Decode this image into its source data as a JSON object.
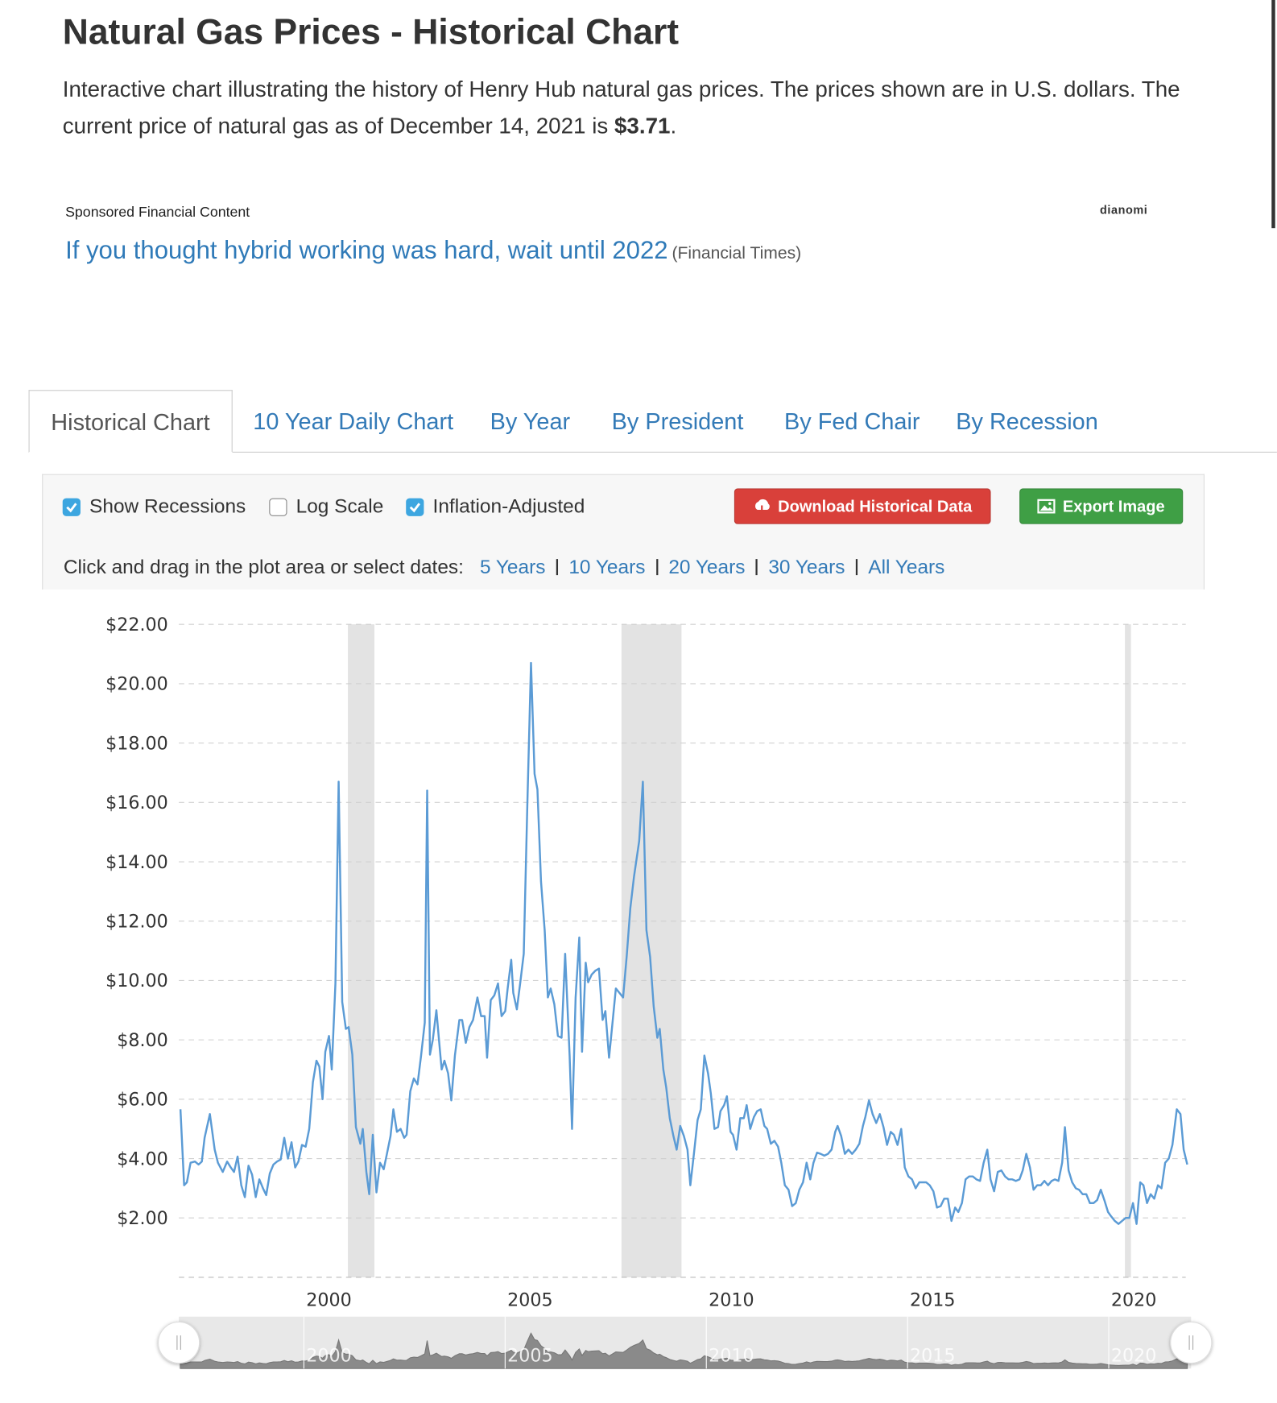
{
  "header": {
    "title": "Natural Gas Prices - Historical Chart",
    "description": "Interactive chart illustrating the history of Henry Hub natural gas prices. The prices shown are in U.S. dollars. The current price of natural gas as of December 14, 2021 is ",
    "price": "$3.71",
    "description_end": "."
  },
  "sponsored": {
    "label": "Sponsored Financial Content",
    "brand": "Dianomi",
    "headline": "If you thought hybrid working was hard, wait until 2022",
    "source": "(Financial Times)"
  },
  "tabs": [
    "Historical Chart",
    "10 Year Daily Chart",
    "By Year",
    "By President",
    "By Fed Chair",
    "By Recession"
  ],
  "controls": {
    "options": [
      {
        "label": "Show Recessions",
        "checked": true
      },
      {
        "label": "Log Scale",
        "checked": false
      },
      {
        "label": "Inflation-Adjusted",
        "checked": true
      }
    ],
    "buttons": [
      {
        "label": "Download Historical Data",
        "color": "#d9403a"
      },
      {
        "label": "Export Image",
        "color": "#3f9f45"
      }
    ],
    "range_prompt": "Click and drag in the plot area or select dates:",
    "ranges": [
      "5 Years",
      "10 Years",
      "20 Years",
      "30 Years",
      "All Years"
    ]
  },
  "chart_data": {
    "type": "line",
    "color": "#5b9bd5",
    "grid": true,
    "log_scale": false,
    "recessions": [
      [
        2000.47,
        2001.13
      ],
      [
        2007.27,
        2008.76
      ],
      [
        2019.78,
        2019.93
      ]
    ],
    "recession_color": "#e3e3e3",
    "xlim": [
      1996.27,
      2021.38
    ],
    "xticks": [
      2000,
      2005,
      2010,
      2015,
      2020
    ],
    "ylim": [
      0,
      22
    ],
    "yticks": [
      {
        "value": 2,
        "label": "$2.00"
      },
      {
        "value": 4,
        "label": "$4.00"
      },
      {
        "value": 6,
        "label": "$6.00"
      },
      {
        "value": 8,
        "label": "$8.00"
      },
      {
        "value": 10,
        "label": "$10.00"
      },
      {
        "value": 12,
        "label": "$12.00"
      },
      {
        "value": 14,
        "label": "$14.00"
      },
      {
        "value": 16,
        "label": "$16.00"
      },
      {
        "value": 18,
        "label": "$18.00"
      },
      {
        "value": 20,
        "label": "$20.00"
      },
      {
        "value": 22,
        "label": "$22.00"
      }
    ],
    "x": [
      1996.31,
      1996.4,
      1996.47,
      1996.56,
      1996.67,
      1996.76,
      1996.84,
      1996.91,
      1997.04,
      1997.16,
      1997.24,
      1997.36,
      1997.47,
      1997.56,
      1997.64,
      1997.73,
      1997.82,
      1997.91,
      1998.0,
      1998.09,
      1998.18,
      1998.27,
      1998.36,
      1998.44,
      1998.53,
      1998.62,
      1998.71,
      1998.8,
      1998.89,
      1998.98,
      1999.07,
      1999.16,
      1999.24,
      1999.33,
      1999.42,
      1999.51,
      1999.6,
      1999.69,
      1999.76,
      1999.84,
      1999.91,
      2000.0,
      2000.07,
      2000.16,
      2000.24,
      2000.33,
      2000.42,
      2000.49,
      2000.58,
      2000.67,
      2000.78,
      2000.84,
      2000.93,
      2001.0,
      2001.09,
      2001.18,
      2001.27,
      2001.36,
      2001.44,
      2001.53,
      2001.6,
      2001.69,
      2001.78,
      2001.87,
      2001.93,
      2002.02,
      2002.11,
      2002.2,
      2002.29,
      2002.38,
      2002.44,
      2002.51,
      2002.58,
      2002.67,
      2002.73,
      2002.8,
      2002.87,
      2002.96,
      2003.04,
      2003.13,
      2003.24,
      2003.31,
      2003.4,
      2003.49,
      2003.58,
      2003.69,
      2003.78,
      2003.87,
      2003.93,
      2004.02,
      2004.11,
      2004.2,
      2004.29,
      2004.38,
      2004.44,
      2004.53,
      2004.58,
      2004.67,
      2004.76,
      2004.84,
      2004.93,
      2005.02,
      2005.11,
      2005.18,
      2005.27,
      2005.36,
      2005.44,
      2005.51,
      2005.6,
      2005.69,
      2005.78,
      2005.87,
      2005.98,
      2006.04,
      2006.13,
      2006.22,
      2006.29,
      2006.38,
      2006.44,
      2006.53,
      2006.62,
      2006.71,
      2006.8,
      2006.87,
      2006.96,
      2007.04,
      2007.13,
      2007.22,
      2007.31,
      2007.4,
      2007.49,
      2007.58,
      2007.71,
      2007.8,
      2007.89,
      2007.98,
      2008.07,
      2008.16,
      2008.22,
      2008.31,
      2008.38,
      2008.47,
      2008.56,
      2008.64,
      2008.73,
      2008.82,
      2008.91,
      2008.98,
      2009.07,
      2009.16,
      2009.24,
      2009.33,
      2009.42,
      2009.49,
      2009.58,
      2009.67,
      2009.73,
      2009.82,
      2009.89,
      2009.98,
      2010.04,
      2010.13,
      2010.22,
      2010.31,
      2010.38,
      2010.47,
      2010.56,
      2010.64,
      2010.73,
      2010.82,
      2010.89,
      2010.98,
      2011.07,
      2011.16,
      2011.24,
      2011.33,
      2011.42,
      2011.51,
      2011.6,
      2011.69,
      2011.78,
      2011.87,
      2011.96,
      2012.04,
      2012.13,
      2012.22,
      2012.31,
      2012.4,
      2012.49,
      2012.58,
      2012.64,
      2012.73,
      2012.82,
      2012.91,
      2013.0,
      2013.09,
      2013.18,
      2013.27,
      2013.33,
      2013.42,
      2013.51,
      2013.6,
      2013.69,
      2013.78,
      2013.87,
      2013.96,
      2014.04,
      2014.13,
      2014.22,
      2014.31,
      2014.4,
      2014.49,
      2014.58,
      2014.67,
      2014.76,
      2014.84,
      2014.93,
      2015.02,
      2015.11,
      2015.2,
      2015.29,
      2015.38,
      2015.47,
      2015.56,
      2015.64,
      2015.73,
      2015.82,
      2015.91,
      2016.0,
      2016.09,
      2016.18,
      2016.27,
      2016.36,
      2016.44,
      2016.53,
      2016.62,
      2016.71,
      2016.8,
      2016.89,
      2016.98,
      2017.07,
      2017.16,
      2017.24,
      2017.33,
      2017.42,
      2017.51,
      2017.6,
      2017.69,
      2017.78,
      2017.87,
      2017.96,
      2018.04,
      2018.13,
      2018.22,
      2018.29,
      2018.38,
      2018.47,
      2018.56,
      2018.64,
      2018.73,
      2018.82,
      2018.91,
      2019.0,
      2019.09,
      2019.18,
      2019.27,
      2019.36,
      2019.44,
      2019.53,
      2019.62,
      2019.71,
      2019.8,
      2019.89,
      2019.98,
      2020.07,
      2020.16,
      2020.24,
      2020.33,
      2020.42,
      2020.51,
      2020.6,
      2020.69,
      2020.78,
      2020.87,
      2020.96,
      2021.07,
      2021.16,
      2021.24,
      2021.33
    ],
    "values": [
      5.66,
      3.1,
      3.2,
      3.86,
      3.9,
      3.8,
      3.9,
      4.7,
      5.5,
      4.3,
      3.86,
      3.55,
      3.9,
      3.7,
      3.55,
      4.07,
      3.1,
      2.7,
      3.76,
      3.46,
      2.7,
      3.3,
      3.0,
      2.77,
      3.5,
      3.8,
      3.9,
      3.97,
      4.7,
      4.0,
      4.55,
      3.7,
      3.9,
      4.46,
      4.4,
      5.0,
      6.57,
      7.3,
      7.1,
      6.0,
      7.6,
      8.13,
      7.0,
      9.9,
      16.7,
      9.28,
      8.37,
      8.43,
      7.5,
      5.06,
      4.5,
      5.0,
      3.55,
      2.8,
      4.8,
      2.86,
      3.86,
      3.64,
      4.16,
      4.76,
      5.66,
      4.9,
      5.0,
      4.7,
      4.8,
      6.27,
      6.7,
      6.5,
      7.47,
      8.58,
      16.4,
      7.5,
      8.0,
      9.0,
      8.07,
      7.0,
      7.3,
      6.87,
      5.96,
      7.47,
      8.67,
      8.67,
      7.9,
      8.43,
      8.67,
      9.43,
      8.8,
      8.8,
      7.4,
      9.34,
      9.5,
      9.9,
      8.8,
      8.97,
      9.73,
      10.7,
      9.58,
      9.03,
      10.0,
      10.9,
      15.9,
      20.7,
      16.96,
      16.44,
      13.34,
      11.7,
      9.43,
      9.73,
      9.2,
      8.13,
      8.07,
      10.9,
      7.47,
      5.0,
      9.43,
      11.45,
      7.6,
      10.6,
      9.94,
      10.2,
      10.33,
      10.4,
      8.67,
      8.97,
      7.4,
      8.5,
      9.73,
      9.58,
      9.43,
      10.84,
      12.44,
      13.5,
      14.7,
      16.7,
      11.7,
      10.8,
      9.13,
      8.07,
      8.37,
      7.0,
      6.4,
      5.36,
      4.76,
      4.3,
      5.1,
      4.76,
      4.3,
      3.1,
      4.16,
      5.3,
      5.66,
      7.47,
      6.87,
      6.2,
      5.0,
      5.06,
      5.6,
      5.8,
      6.1,
      4.9,
      4.8,
      4.3,
      5.36,
      5.36,
      5.8,
      5.0,
      5.4,
      5.6,
      5.66,
      5.1,
      5.0,
      4.5,
      4.6,
      4.4,
      3.86,
      3.1,
      2.95,
      2.4,
      2.5,
      2.95,
      3.2,
      3.86,
      3.3,
      3.86,
      4.2,
      4.16,
      4.1,
      4.16,
      4.3,
      4.9,
      5.1,
      4.76,
      4.16,
      4.3,
      4.16,
      4.3,
      4.5,
      5.1,
      5.4,
      5.96,
      5.5,
      5.2,
      5.5,
      5.06,
      4.46,
      4.9,
      4.8,
      4.46,
      5.0,
      3.7,
      3.4,
      3.3,
      3.0,
      3.2,
      3.2,
      3.2,
      3.1,
      2.9,
      2.35,
      2.4,
      2.65,
      2.65,
      1.9,
      2.35,
      2.2,
      2.5,
      3.3,
      3.4,
      3.4,
      3.3,
      3.25,
      3.86,
      4.3,
      3.3,
      2.9,
      3.55,
      3.6,
      3.4,
      3.3,
      3.3,
      3.25,
      3.3,
      3.6,
      4.16,
      3.7,
      2.95,
      3.1,
      3.1,
      3.25,
      3.1,
      3.25,
      3.3,
      3.25,
      3.86,
      5.06,
      3.6,
      3.2,
      3.0,
      2.95,
      2.8,
      2.8,
      2.5,
      2.5,
      2.6,
      2.95,
      2.6,
      2.2,
      2.05,
      1.9,
      1.8,
      1.9,
      2.0,
      2.0,
      2.5,
      1.8,
      3.2,
      3.1,
      2.5,
      2.8,
      2.65,
      3.1,
      3.0,
      3.86,
      4.0,
      4.46,
      5.66,
      5.5,
      4.3,
      3.8
    ]
  }
}
